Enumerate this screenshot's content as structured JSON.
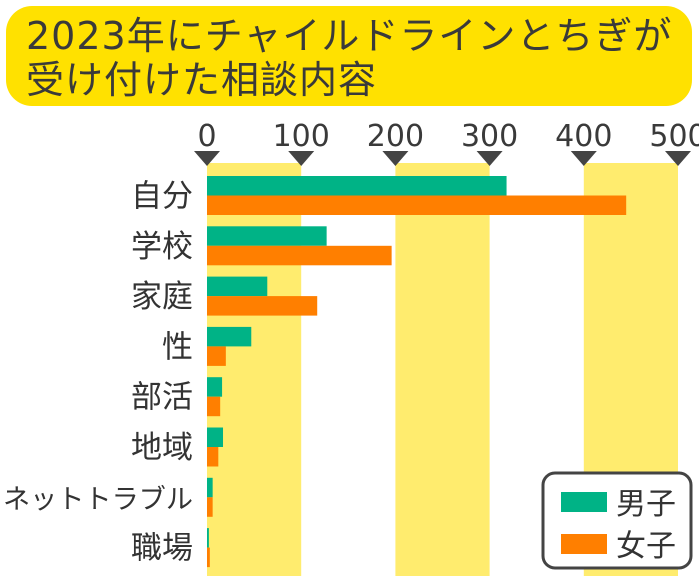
{
  "title_lines": [
    "2023年にチャイルドラインとちぎが",
    "受け付けた相談内容"
  ],
  "chart_data": {
    "type": "bar",
    "orientation": "horizontal",
    "title": "2023年にチャイルドラインとちぎが受け付けた相談内容",
    "categories": [
      "自分",
      "学校",
      "家庭",
      "性",
      "部活",
      "地域",
      "ネットトラブル",
      "職場"
    ],
    "series": [
      {
        "name": "男子",
        "color": "#00B386",
        "values": [
          318,
          127,
          64,
          47,
          16,
          17,
          6,
          2
        ]
      },
      {
        "name": "女子",
        "color": "#FF7F00",
        "values": [
          445,
          196,
          117,
          20,
          14,
          12,
          6,
          3
        ]
      }
    ],
    "xlim": [
      0,
      500
    ],
    "xticks": [
      0,
      100,
      200,
      300,
      400,
      500
    ],
    "band_color": "#FFEC6E",
    "legend_position": "bottom-right"
  }
}
